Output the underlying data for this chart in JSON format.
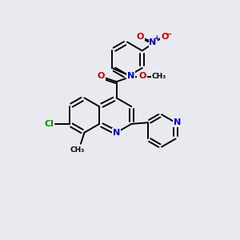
{
  "background_color": "#e8eaf0",
  "bond_color": "#000000",
  "atom_colors": {
    "N": "#0000cc",
    "O": "#cc0000",
    "Cl": "#009900",
    "C": "#000000",
    "H": "#669999"
  }
}
